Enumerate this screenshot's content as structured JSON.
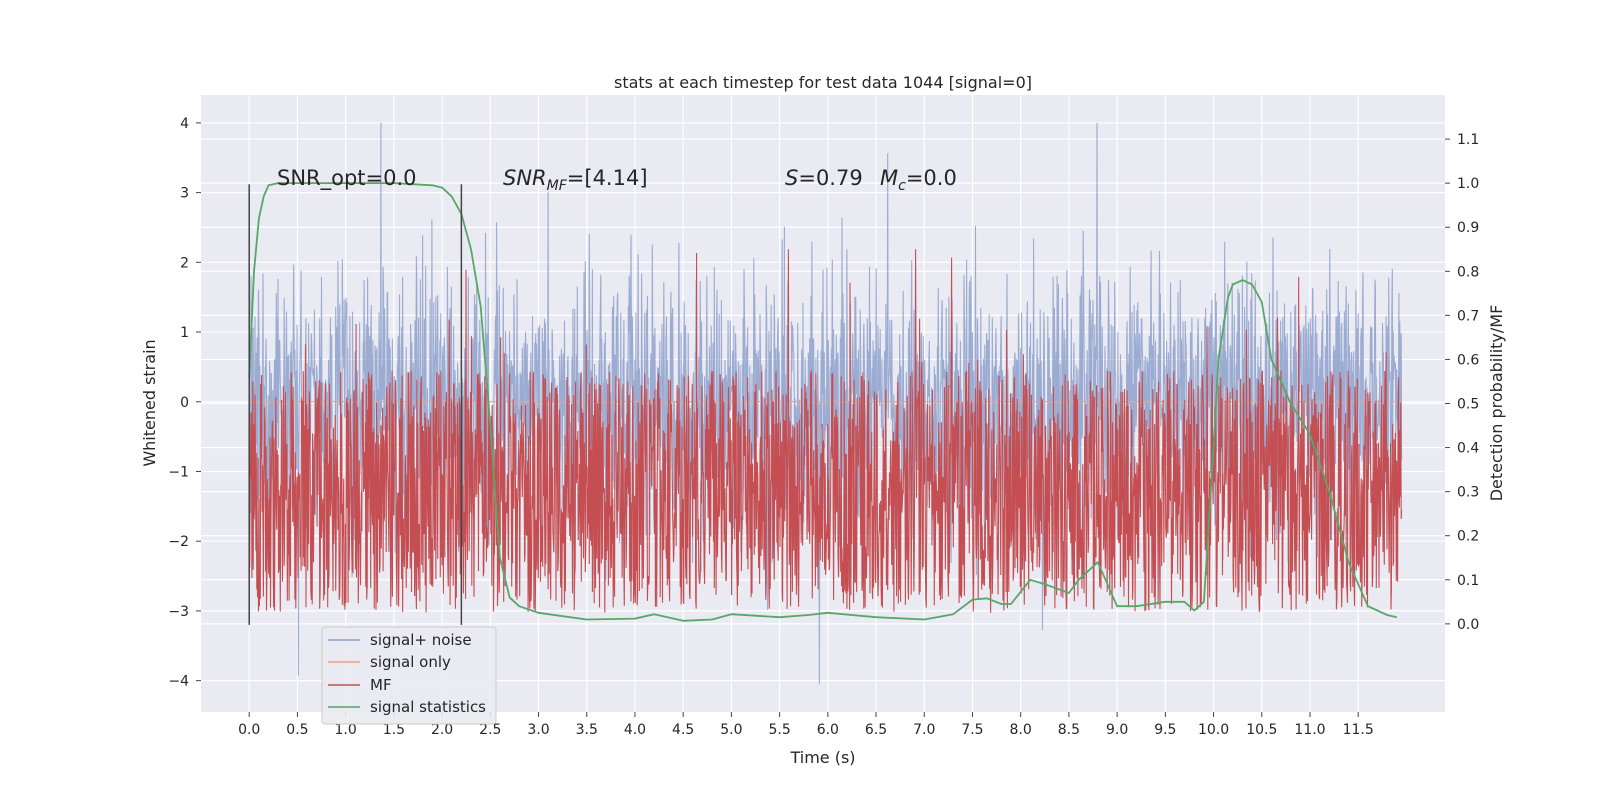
{
  "chart_data": {
    "type": "line",
    "title": "stats at each timestep for test data 1044 [signal=0]",
    "xlabel": "Time (s)",
    "ylabel_left": "Whitened strain",
    "ylabel_right": "Detection probability/MF",
    "xlim": [
      -0.5,
      12.4
    ],
    "ylim_left": [
      -4.45,
      4.4
    ],
    "ylim_right": [
      -0.2,
      1.2
    ],
    "x_ticks": [
      "0.0",
      "0.5",
      "1.0",
      "1.5",
      "2.0",
      "2.5",
      "3.0",
      "3.5",
      "4.0",
      "4.5",
      "5.0",
      "5.5",
      "6.0",
      "6.5",
      "7.0",
      "7.5",
      "8.0",
      "8.5",
      "9.0",
      "9.5",
      "10.0",
      "10.5",
      "11.0",
      "11.5"
    ],
    "y_left_ticks": [
      "4",
      "3",
      "2",
      "1",
      "0",
      "−1",
      "−2",
      "−3",
      "−4"
    ],
    "y_right_ticks": [
      "1.1",
      "1.0",
      "0.9",
      "0.8",
      "0.7",
      "0.6",
      "0.5",
      "0.4",
      "0.3",
      "0.2",
      "0.1",
      "0.0"
    ],
    "grid": true,
    "legend_placement": "lower-left",
    "colors": {
      "noise": "#8da0cb",
      "signal_only": "#e8a48a",
      "mf": "#c44e52",
      "stat": "#55a868",
      "vline": "#444444",
      "background": "#eaeaf2"
    },
    "annotations": {
      "snr_opt": "SNR_opt=0.0",
      "snr_mf_base": "SNR",
      "snr_mf_sub": "MF",
      "snr_mf_value": "=[4.14]",
      "s_label": "S",
      "s_value": "=0.79",
      "mc_base": "M",
      "mc_sub": "c",
      "mc_value": "=0.0"
    },
    "vertical_lines_x": [
      0.0,
      2.2
    ],
    "series": [
      {
        "name": "signal+ noise",
        "kind": "noise",
        "x_range": [
          0.0,
          11.95
        ],
        "amplitude_envelope": [
          -4.1,
          4.0
        ]
      },
      {
        "name": "signal only",
        "kind": "signal_only",
        "x": [
          0.0,
          11.95
        ],
        "y": [
          0,
          0
        ]
      },
      {
        "name": "MF",
        "kind": "mf",
        "x_range": [
          0.0,
          11.95
        ],
        "range": [
          0.0,
          0.85
        ]
      },
      {
        "name": "signal statistics",
        "kind": "stat",
        "x": [
          0.0,
          0.05,
          0.1,
          0.15,
          0.2,
          0.3,
          0.5,
          1.0,
          1.5,
          1.9,
          2.0,
          2.1,
          2.2,
          2.3,
          2.4,
          2.5,
          2.6,
          2.7,
          2.8,
          3.0,
          3.5,
          4.0,
          4.2,
          4.5,
          4.8,
          5.0,
          5.5,
          5.8,
          6.0,
          6.5,
          7.0,
          7.3,
          7.5,
          7.65,
          7.8,
          7.9,
          8.1,
          8.25,
          8.5,
          8.6,
          8.8,
          9.0,
          9.2,
          9.5,
          9.7,
          9.8,
          9.9,
          10.0,
          10.05,
          10.15,
          10.2,
          10.3,
          10.4,
          10.5,
          10.6,
          10.8,
          11.0,
          11.2,
          11.4,
          11.6,
          11.8,
          11.9
        ],
        "y": [
          0.56,
          0.8,
          0.92,
          0.97,
          0.995,
          1.0,
          1.0,
          1.0,
          1.0,
          0.995,
          0.99,
          0.97,
          0.93,
          0.85,
          0.72,
          0.45,
          0.15,
          0.06,
          0.04,
          0.025,
          0.01,
          0.012,
          0.022,
          0.007,
          0.01,
          0.022,
          0.015,
          0.02,
          0.025,
          0.015,
          0.01,
          0.022,
          0.055,
          0.058,
          0.045,
          0.045,
          0.1,
          0.09,
          0.07,
          0.1,
          0.14,
          0.04,
          0.04,
          0.05,
          0.05,
          0.03,
          0.05,
          0.4,
          0.6,
          0.74,
          0.77,
          0.78,
          0.77,
          0.73,
          0.6,
          0.5,
          0.43,
          0.3,
          0.14,
          0.04,
          0.02,
          0.015
        ]
      }
    ]
  }
}
